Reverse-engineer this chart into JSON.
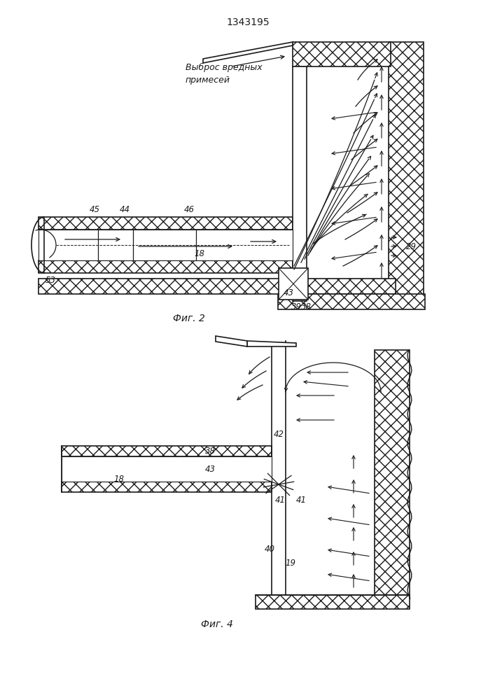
{
  "title": "1343195",
  "fig2_label": "Фиг. 2",
  "fig4_label": "Фиг. 4",
  "annotation_text": "Выброс вредных\nпримесей",
  "bg_color": "#ffffff",
  "line_color": "#1a1a1a",
  "labels": {
    "18": "18",
    "19": "19",
    "29": "29",
    "38": "38",
    "39": "39",
    "40": "40",
    "41a": "41",
    "41b": "41",
    "42": "42",
    "43": "43",
    "44": "44",
    "45": "45",
    "46": "46",
    "53": "53"
  }
}
